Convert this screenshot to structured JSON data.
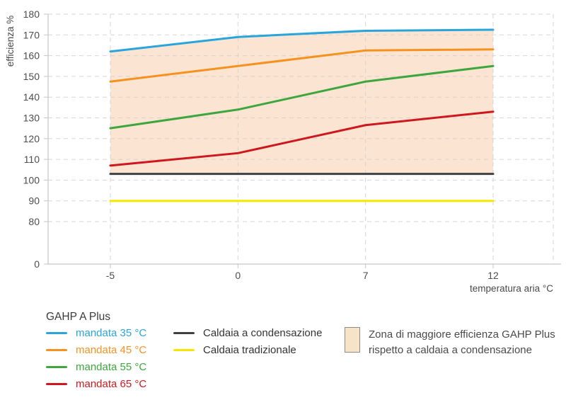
{
  "chart_data": {
    "type": "line",
    "title": "",
    "xlabel": "temperatura aria °C",
    "ylabel": "efficienza %",
    "x_tick_labels": [
      "-5",
      "0",
      "7",
      "12"
    ],
    "x_values": [
      -5,
      0,
      7,
      12
    ],
    "y_ticks": [
      0,
      80,
      90,
      100,
      110,
      120,
      130,
      140,
      150,
      160,
      170,
      180
    ],
    "y_axis_break_between": [
      0,
      80
    ],
    "ylim": [
      0,
      180
    ],
    "grid": "dashed",
    "legend_position": "bottom",
    "series": [
      {
        "name": "mandata 35 °C",
        "group": "GAHP A Plus",
        "color": "#2AA5DC",
        "values": [
          162,
          169,
          172,
          172.5
        ]
      },
      {
        "name": "mandata 45 °C",
        "group": "GAHP A Plus",
        "color": "#F5921F",
        "values": [
          147.5,
          155,
          162.5,
          163
        ]
      },
      {
        "name": "mandata 55 °C",
        "group": "GAHP A Plus",
        "color": "#3DA63E",
        "values": [
          125,
          134,
          147.5,
          155
        ]
      },
      {
        "name": "mandata 65 °C",
        "group": "GAHP A Plus",
        "color": "#CE181E",
        "values": [
          107,
          113,
          126.5,
          133
        ]
      },
      {
        "name": "Caldaia a condensazione",
        "color": "#404040",
        "values": [
          103,
          103,
          103,
          103
        ]
      },
      {
        "name": "Caldaia tradizionale",
        "color": "#F7E700",
        "values": [
          90,
          90,
          90,
          90
        ]
      }
    ],
    "zone": {
      "label": "Zona di maggiore efficienza GAHP Plus rispetto a caldaia a condensazione",
      "fill": "#FBE5D2",
      "between": [
        "mandata 35 °C",
        "Caldaia a condensazione"
      ],
      "x_range": [
        -5,
        12
      ]
    }
  },
  "legend": {
    "group_title": "GAHP A Plus",
    "gahp_items": [
      {
        "label": "mandata 35 °C",
        "color": "#2AA5DC"
      },
      {
        "label": "mandata 45 °C",
        "color": "#F5921F"
      },
      {
        "label": "mandata 55 °C",
        "color": "#3DA63E"
      },
      {
        "label": "mandata 65 °C",
        "color": "#CE181E"
      }
    ],
    "boiler_items": [
      {
        "label": "Caldaia a condensazione",
        "color": "#404040"
      },
      {
        "label": "Caldaia tradizionale",
        "color": "#F7E700"
      }
    ],
    "zone_item": {
      "lines": [
        "Zona di maggiore efficienza GAHP Plus",
        "rispetto a caldaia a condensazione"
      ],
      "swatch_fill": "#F6E3C8",
      "swatch_border": "#8C8C8C"
    }
  }
}
